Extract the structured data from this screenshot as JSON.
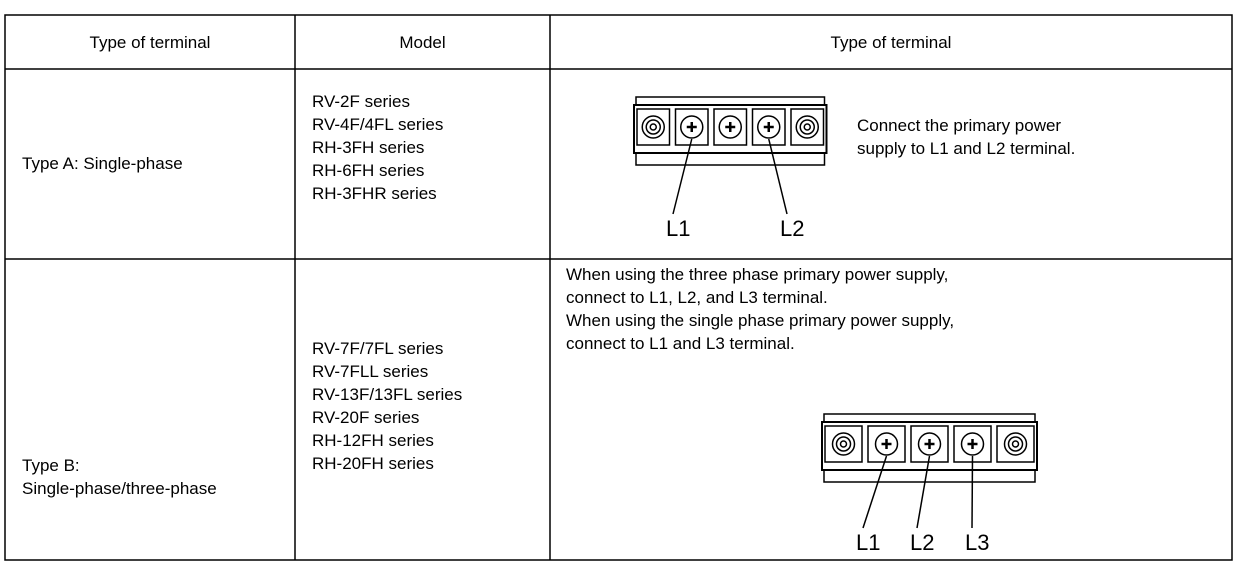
{
  "table": {
    "header": [
      "Type of terminal",
      "Model",
      "Type of terminal"
    ],
    "rows": [
      {
        "type": [
          "Type A: Single-phase"
        ],
        "models": [
          "RV-2F series",
          "RV-4F/4FL series",
          "RH-3FH series",
          "RH-6FH series",
          "RH-3FHR series"
        ],
        "note": [
          "Connect the primary power",
          "supply to L1 and L2 terminal."
        ],
        "terminals": [
          "L1",
          "L2"
        ]
      },
      {
        "type": [
          "Type B:",
          "Single-phase/three-phase"
        ],
        "models": [
          "RV-7F/7FL series",
          "RV-7FLL series",
          "RV-13F/13FL series",
          "RV-20F series",
          "RH-12FH series",
          "RH-20FH series"
        ],
        "note": [
          "When using the three phase primary power supply,",
          "connect to L1, L2, and L3 terminal.",
          "When using the single phase primary power supply,",
          "connect to L1 and L3 terminal."
        ],
        "terminals": [
          "L1",
          "L2",
          "L3"
        ]
      }
    ]
  }
}
